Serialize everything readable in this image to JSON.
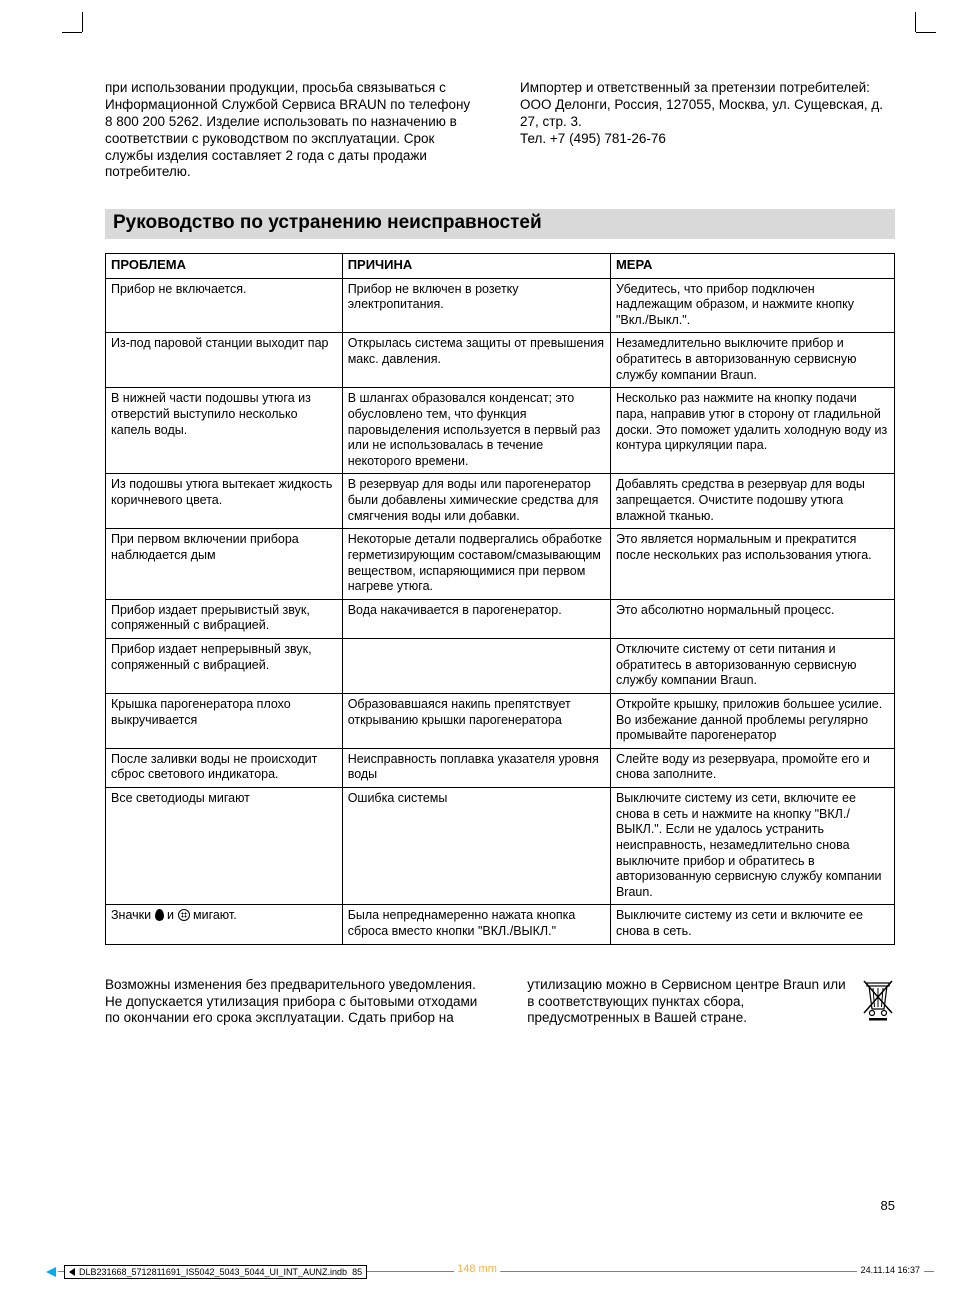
{
  "intro": {
    "left": "при использовании продукции, просьба связываться с Информационной Службой Сервиса BRAUN по телефону 8 800 200 5262. Изделие использовать по назначению в соответствии с руководством по эксплуатации. Срок службы изделия составляет 2 года с даты продажи потребителю.",
    "right": "Импортер и ответственный за претензии потребителей: ООО Делонги, Россия, 127055, Москва, ул. Сущевская, д. 27, стр. 3.\nТел. +7 (495) 781-26-76"
  },
  "section_title": "Руководство по устранению неисправностей",
  "table": {
    "headers": [
      "ПРОБЛЕМА",
      "ПРИЧИНА",
      "МЕРА"
    ],
    "rows": [
      [
        "Прибор не включается.",
        "Прибор не включен в розетку электропитания.",
        "Убедитесь, что прибор подключен надлежащим образом, и нажмите кнопку \"Вкл./Выкл.\"."
      ],
      [
        "Из-под паровой станции выходит пар",
        "Открылась система защиты от превышения макс. давления.",
        "Незамедлительно выключите прибор и обратитесь в авторизованную сервисную службу компании Braun."
      ],
      [
        "В нижней части подошвы утюга из отверстий выступило несколько капель воды.",
        "В шлангах образовался конденсат; это обусловлено тем, что функция паровыделения используется в первый раз или не использовалась в течение некоторого времени.",
        "Несколько раз нажмите на кнопку подачи пара, направив утюг в сторону от гладильной доски. Это поможет удалить холодную воду из контура циркуляции пара."
      ],
      [
        "Из подошвы утюга вытекает жидкость коричневого цвета.",
        "В резервуар для воды или парогенератор были добавлены химические средства для смягчения воды или добавки.",
        "Добавлять средства в резервуар для воды запрещается. Очистите подошву утюга влажной тканью."
      ],
      [
        "При первом включении прибора наблюдается дым",
        "Некоторые детали подвергались обработке герметизирующим составом/смазывающим веществом, испаряющимися при первом нагреве утюга.",
        "Это является нормальным и прекратится после нескольких раз использования утюга."
      ],
      [
        "Прибор издает прерывистый звук, сопряженный с вибрацией.",
        "Вода накачивается в парогенератор.",
        "Это абсолютно нормальный процесс."
      ],
      [
        "Прибор издает непрерывный звук, сопряженный с вибрацией.",
        "",
        "Отключите систему от сети питания и обратитесь в авторизованную сервисную службу компании Braun."
      ],
      [
        "Крышка парогенератора плохо выкручивается",
        "Образовавшаяся накипь препятствует открыванию крышки парогенератора",
        "Откройте крышку, приложив большее усилие. Во избежание данной проблемы регулярно промывайте парогенератор"
      ],
      [
        "После заливки воды не происходит сброс светового индикатора.",
        "Неисправность поплавка указателя уровня воды",
        "Слейте воду из резервуара, промойте его и снова заполните."
      ],
      [
        "Все светодиоды мигают",
        "Ошибка системы",
        "Выключите систему из сети, включите ее снова в сеть и нажмите на кнопку \"ВКЛ./ВЫКЛ.\". Если не удалось устранить неисправность, незамедлительно снова выключите прибор и обратитесь в авторизованную сервисную службу компании Braun."
      ],
      [
        "__ICONS__",
        "Была непреднамеренно нажата кнопка сброса вместо кнопки \"ВКЛ./ВЫКЛ.\"",
        "Выключите систему из сети и включите ее снова в сеть."
      ]
    ],
    "icon_row_prefix": "Значки ",
    "icon_row_middle": " и ",
    "icon_row_suffix": " мигают."
  },
  "outro": {
    "left": "Возможны изменения без предварительного уведомления. Не допускается утилизация прибора с бытовыми отходами по окончании его срока эксплуатации. Сдать прибор на",
    "right": "утилизацию можно в Сервисном центре Braun или в соответствующих пунктах сбора, предусмотренных в Вашей стране."
  },
  "page_number": "85",
  "footer": {
    "filename": "DLB231668_5712811691_IS5042_5043_5044_UI_INT_AUNZ.indb",
    "sheet": "85",
    "measure": "148 mm",
    "timestamp": "24.11.14   16:37"
  },
  "colors": {
    "section_bg": "#d9d9d9",
    "cyan": "#00aeef",
    "orange": "#fbb040",
    "text": "#000000"
  }
}
